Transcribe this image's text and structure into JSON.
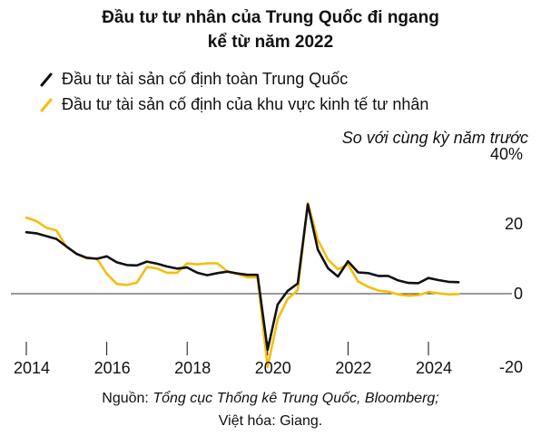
{
  "title_line1": "Đầu tư tư nhân của Trung Quốc đi ngang",
  "title_line2": "kể từ năm 2022",
  "subtitle": "So với cùng kỳ năm trước",
  "source_label": "Nguồn: ",
  "source_italic": "Tổng cục Thống kê Trung Quốc, Bloomberg;",
  "credit": "Việt hóa: Giang.",
  "colors": {
    "total": "#111111",
    "private": "#F5BE0B",
    "zero": "#333333"
  },
  "chart_data": {
    "type": "line",
    "title": "Đầu tư tư nhân của Trung Quốc đi ngang kể từ năm 2022",
    "subtitle": "So với cùng kỳ năm trước",
    "xlabel": "",
    "ylabel": "",
    "xlim": [
      2013.9,
      2025.1
    ],
    "ylim": [
      -25,
      40
    ],
    "x_ticks": [
      {
        "value": 2014,
        "label": "2014"
      },
      {
        "value": 2016,
        "label": "2016"
      },
      {
        "value": 2018,
        "label": "2018"
      },
      {
        "value": 2020,
        "label": "2020"
      },
      {
        "value": 2022,
        "label": "2022"
      },
      {
        "value": 2024,
        "label": "2024"
      }
    ],
    "y_ticks": [
      {
        "value": 40,
        "label": "40%"
      },
      {
        "value": 20,
        "label": "20"
      },
      {
        "value": 0,
        "label": "0"
      },
      {
        "value": -20,
        "label": "-20"
      }
    ],
    "grid": false,
    "legend_position": "top-left",
    "series": [
      {
        "name": "Đầu tư tài sản cố định toàn Trung Quốc",
        "color": "#111111",
        "points": [
          [
            2014.0,
            17.6
          ],
          [
            2014.25,
            17.3
          ],
          [
            2014.5,
            16.5
          ],
          [
            2014.75,
            15.7
          ],
          [
            2015.0,
            13.5
          ],
          [
            2015.25,
            11.4
          ],
          [
            2015.5,
            10.3
          ],
          [
            2015.75,
            10.0
          ],
          [
            2016.0,
            10.7
          ],
          [
            2016.25,
            9.0
          ],
          [
            2016.5,
            8.2
          ],
          [
            2016.75,
            8.1
          ],
          [
            2017.0,
            9.2
          ],
          [
            2017.25,
            8.6
          ],
          [
            2017.5,
            7.8
          ],
          [
            2017.75,
            7.2
          ],
          [
            2018.0,
            7.5
          ],
          [
            2018.25,
            6.0
          ],
          [
            2018.5,
            5.3
          ],
          [
            2018.75,
            5.9
          ],
          [
            2019.0,
            6.3
          ],
          [
            2019.25,
            5.8
          ],
          [
            2019.5,
            5.4
          ],
          [
            2019.75,
            5.4
          ],
          [
            2020.0,
            -16.1
          ],
          [
            2020.25,
            -3.1
          ],
          [
            2020.5,
            0.8
          ],
          [
            2020.75,
            2.9
          ],
          [
            2021.0,
            25.6
          ],
          [
            2021.25,
            12.6
          ],
          [
            2021.5,
            7.3
          ],
          [
            2021.75,
            4.9
          ],
          [
            2022.0,
            9.3
          ],
          [
            2022.25,
            6.1
          ],
          [
            2022.5,
            5.9
          ],
          [
            2022.75,
            5.1
          ],
          [
            2023.0,
            5.1
          ],
          [
            2023.25,
            3.8
          ],
          [
            2023.5,
            3.1
          ],
          [
            2023.75,
            3.0
          ],
          [
            2024.0,
            4.5
          ],
          [
            2024.25,
            3.9
          ],
          [
            2024.5,
            3.4
          ],
          [
            2024.75,
            3.3
          ]
        ]
      },
      {
        "name": "Đầu tư tài sản cố định của khu vực kinh tế tư nhân",
        "color": "#F5BE0B",
        "points": [
          [
            2014.0,
            21.8
          ],
          [
            2014.25,
            20.8
          ],
          [
            2014.5,
            18.9
          ],
          [
            2014.75,
            18.1
          ],
          [
            2015.0,
            13.4
          ],
          [
            2015.25,
            11.4
          ],
          [
            2015.5,
            10.1
          ],
          [
            2015.75,
            10.1
          ],
          [
            2016.0,
            5.7
          ],
          [
            2016.25,
            2.8
          ],
          [
            2016.5,
            2.5
          ],
          [
            2016.75,
            3.2
          ],
          [
            2017.0,
            7.7
          ],
          [
            2017.25,
            7.2
          ],
          [
            2017.5,
            6.0
          ],
          [
            2017.75,
            6.0
          ],
          [
            2018.0,
            8.7
          ],
          [
            2018.25,
            8.4
          ],
          [
            2018.5,
            8.7
          ],
          [
            2018.75,
            8.7
          ],
          [
            2019.0,
            6.4
          ],
          [
            2019.25,
            5.7
          ],
          [
            2019.5,
            4.7
          ],
          [
            2019.75,
            4.7
          ],
          [
            2020.0,
            -21.0
          ],
          [
            2020.25,
            -7.3
          ],
          [
            2020.5,
            -1.5
          ],
          [
            2020.75,
            1.0
          ],
          [
            2021.0,
            26.0
          ],
          [
            2021.25,
            15.4
          ],
          [
            2021.5,
            9.8
          ],
          [
            2021.75,
            7.0
          ],
          [
            2022.0,
            8.4
          ],
          [
            2022.25,
            3.5
          ],
          [
            2022.5,
            2.0
          ],
          [
            2022.75,
            0.9
          ],
          [
            2023.0,
            0.6
          ],
          [
            2023.25,
            -0.2
          ],
          [
            2023.5,
            -0.6
          ],
          [
            2023.75,
            -0.4
          ],
          [
            2024.0,
            0.5
          ],
          [
            2024.25,
            0.1
          ],
          [
            2024.5,
            -0.2
          ],
          [
            2024.75,
            -0.1
          ]
        ]
      }
    ]
  }
}
